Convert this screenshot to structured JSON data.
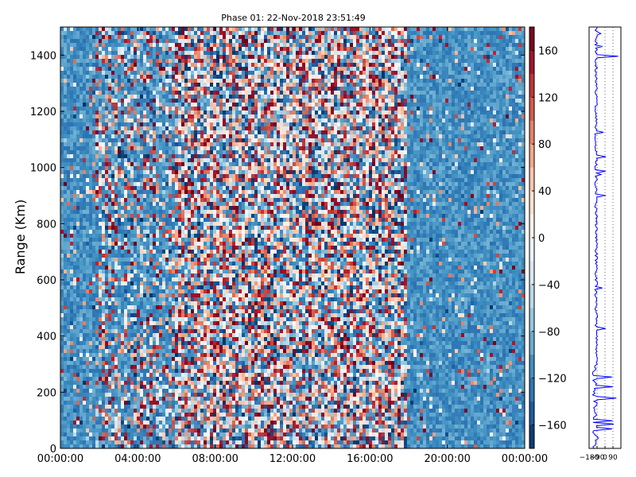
{
  "chart_data": [
    {
      "type": "heatmap",
      "title": "Phase 01: 22-Nov-2018 23:51:49",
      "xlabel": "",
      "ylabel": "Range (Km)",
      "x_tick_labels": [
        "00:00:00",
        "04:00:00",
        "08:00:00",
        "12:00:00",
        "16:00:00",
        "20:00:00",
        "00:00:00"
      ],
      "x_hours": [
        0,
        4,
        8,
        12,
        16,
        20,
        24
      ],
      "xlim_hours": [
        0,
        24
      ],
      "y_ticks": [
        0,
        200,
        400,
        600,
        800,
        1000,
        1200,
        1400
      ],
      "ylim": [
        0,
        1500
      ],
      "colorbar": {
        "ticks": [
          160,
          120,
          80,
          40,
          0,
          -40,
          -80,
          -120,
          -160
        ],
        "range": [
          -180,
          180
        ],
        "colormap": "RdBu_r"
      },
      "regions": [
        {
          "hours": [
            0,
            1.8
          ],
          "description": "phase mostly blue (~-110)"
        },
        {
          "hours": [
            6,
            18
          ],
          "description": "random phase (noise), full range"
        },
        {
          "hours": [
            18,
            24
          ],
          "description": "phase mostly blue (~-110)"
        }
      ]
    },
    {
      "type": "line",
      "title": "",
      "xlabel": "",
      "ylabel": "",
      "x_tick_labels": [
        "−180",
        "−90",
        "0",
        "90"
      ],
      "x_ticks": [
        -180,
        -90,
        0,
        90
      ],
      "xlim": [
        -180,
        180
      ],
      "ylim": [
        0,
        1500
      ],
      "series": [
        {
          "color": "#0000ff"
        }
      ]
    }
  ]
}
